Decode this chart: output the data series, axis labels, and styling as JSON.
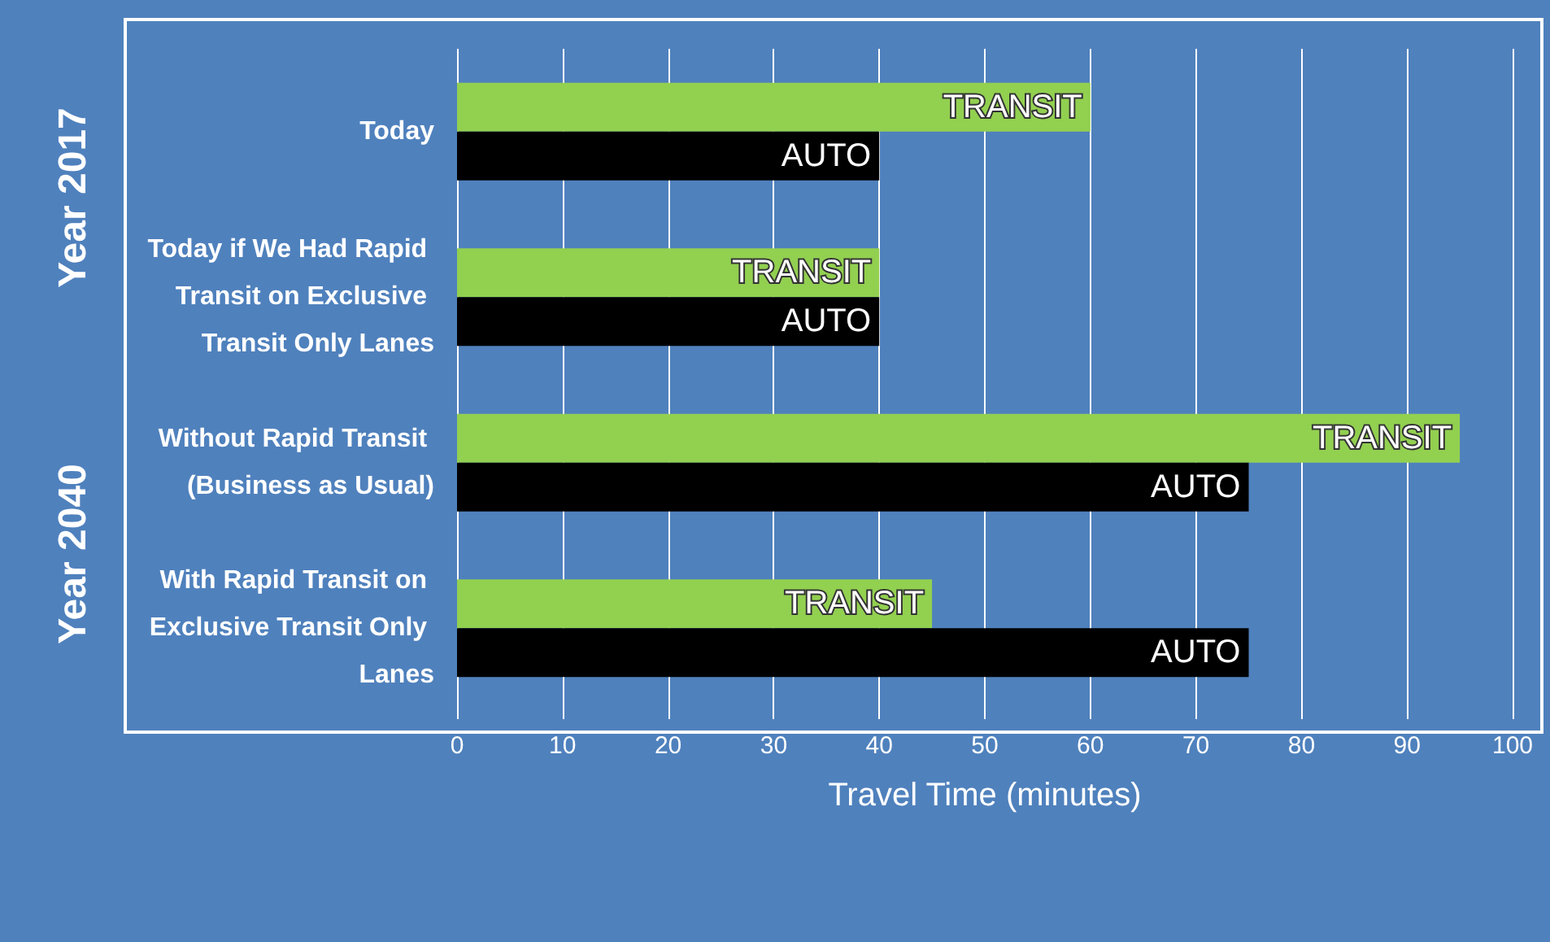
{
  "chart_data": {
    "type": "bar",
    "orientation": "horizontal",
    "xlabel": "Travel Time (minutes)",
    "categories": [
      "Today",
      "Today if We Had Rapid Transit on Exclusive Transit Only Lanes",
      "Without Rapid Transit (Business as Usual)",
      "With Rapid Transit on Exclusive Transit Only Lanes"
    ],
    "series": [
      {
        "name": "TRANSIT",
        "color": "#92d050",
        "values": [
          60,
          40,
          95,
          45
        ]
      },
      {
        "name": "AUTO",
        "color": "#000000",
        "values": [
          40,
          40,
          75,
          75
        ]
      }
    ],
    "xlim": [
      0,
      100
    ],
    "xticks": [
      0,
      10,
      20,
      30,
      40,
      50,
      60,
      70,
      80,
      90,
      100
    ],
    "grid": "x",
    "legend": false,
    "annotations": [
      "Year 2017",
      "Year 2040"
    ]
  }
}
